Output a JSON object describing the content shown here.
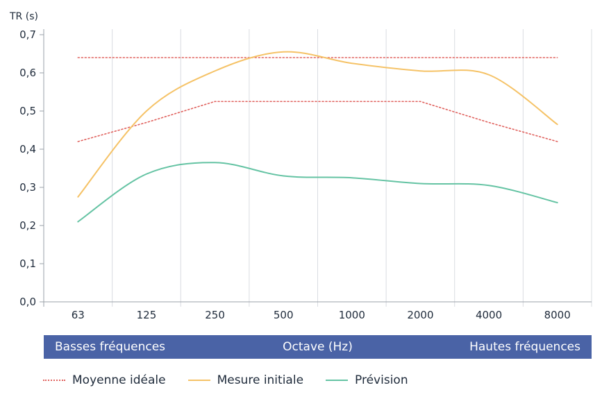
{
  "chart_data": {
    "type": "line",
    "ylabel": "TR (s)",
    "xlabel": "Octave (Hz)",
    "categories": [
      "63",
      "125",
      "250",
      "500",
      "1000",
      "2000",
      "4000",
      "8000"
    ],
    "yticks": [
      "0,0",
      "0,1",
      "0,2",
      "0,3",
      "0,4",
      "0,5",
      "0,6",
      "0,7"
    ],
    "ylim": [
      0,
      0.7
    ],
    "band_left": "Basses fréquences",
    "band_right": "Hautes fréquences",
    "grid": "vertical",
    "legend_position": "bottom-left",
    "series": [
      {
        "name": "Moyenne idéale",
        "style": "dotted",
        "color": "#e0625e",
        "values": [
          0.64,
          0.64,
          0.64,
          0.64,
          0.64,
          0.64,
          0.64,
          0.64
        ]
      },
      {
        "name": "Moyenne idéale",
        "style": "dotted",
        "color": "#e0625e",
        "values": [
          0.42,
          0.47,
          0.525,
          0.525,
          0.525,
          0.525,
          0.47,
          0.42
        ]
      },
      {
        "name": "Mesure initiale",
        "style": "solid",
        "color": "#f5c266",
        "values": [
          0.275,
          0.5,
          0.605,
          0.655,
          0.625,
          0.605,
          0.595,
          0.465
        ]
      },
      {
        "name": "Prévision",
        "style": "solid",
        "color": "#64c3a3",
        "values": [
          0.21,
          0.335,
          0.365,
          0.33,
          0.325,
          0.31,
          0.305,
          0.26
        ]
      }
    ]
  }
}
